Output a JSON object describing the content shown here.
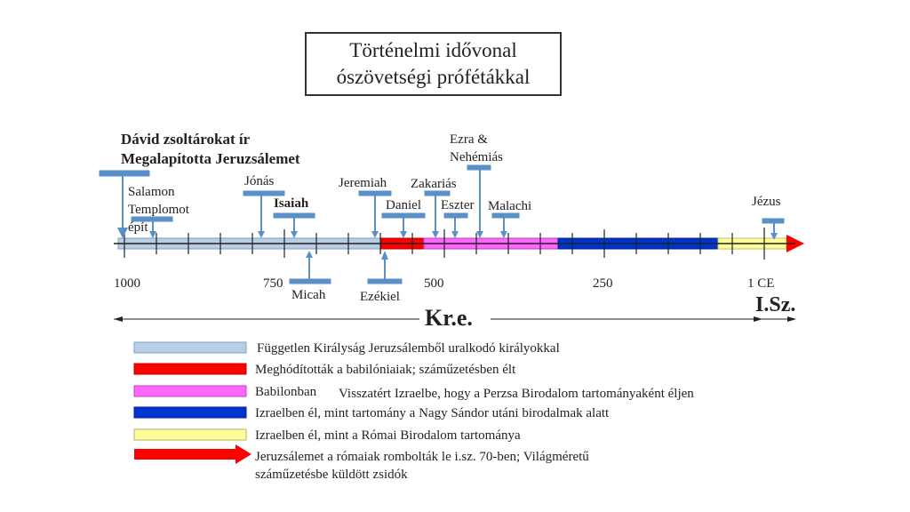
{
  "title": {
    "line1": "Történelmi idővonal",
    "line2": "ószövetségi prófétákkal"
  },
  "colors": {
    "independent": "#b9cde5",
    "babylon": "#ff0000",
    "return": "#ff66ff",
    "greek": "#0033cc",
    "roman": "#ffff99",
    "marker": "#5b8fc7",
    "axis": "#222222"
  },
  "timeline": {
    "axis_direction": "years BC decreasing to the right",
    "tick_labels": [
      "1000",
      "750",
      "500",
      "250",
      "1 CE"
    ],
    "eras": [
      {
        "key": "independent",
        "from": 1015,
        "to": 586
      },
      {
        "key": "babylon",
        "from": 586,
        "to": 536
      },
      {
        "key": "return",
        "from": 536,
        "to": 330
      },
      {
        "key": "greek",
        "from": 330,
        "to": 63
      },
      {
        "key": "roman",
        "from": 63,
        "to": -33
      }
    ],
    "era_bc": "Kr.e.",
    "era_ad": "I.Sz."
  },
  "notes": {
    "david_line1": "Dávid zsoltárokat ír",
    "david_line2": "Megalapította Jeruzsálemet",
    "salamon_line1": "Salamon",
    "salamon_line2": "Templomot",
    "salamon_line3": "épít"
  },
  "prophets": {
    "jonas": "Jónás",
    "isaiah": "Isaiah",
    "micah": "Micah",
    "jeremiah": "Jeremiah",
    "ezekiel": "Ezékiel",
    "daniel": "Daniel",
    "zakarias": "Zakariás",
    "ezra_line1": "Ezra &",
    "ezra_line2": "Nehémiás",
    "eszter": "Eszter",
    "malachi": "Malachi",
    "jezus": "Jézus"
  },
  "legend": [
    {
      "key": "independent",
      "text": "Független Királyság Jeruzsálemből uralkodó királyokkal"
    },
    {
      "key": "babylon",
      "text": "Meghódították a babilóniaiak; száműzetésben élt"
    },
    {
      "key": "return",
      "text_a": "Babilonban",
      "text_b": "Visszatért Izraelbe, hogy a Perzsa Birodalom tartományaként éljen"
    },
    {
      "key": "greek",
      "text": "Izraelben él, mint tartomány a Nagy Sándor utáni birodalmak alatt"
    },
    {
      "key": "roman",
      "text": "Izraelben él, mint a Római Birodalom tartománya"
    },
    {
      "key": "arrow",
      "text_line1": "Jeruzsálemet a rómaiak rombolták le i.sz. 70-ben; Világméretű",
      "text_line2": "száműzetésbe küldött zsidók"
    }
  ]
}
